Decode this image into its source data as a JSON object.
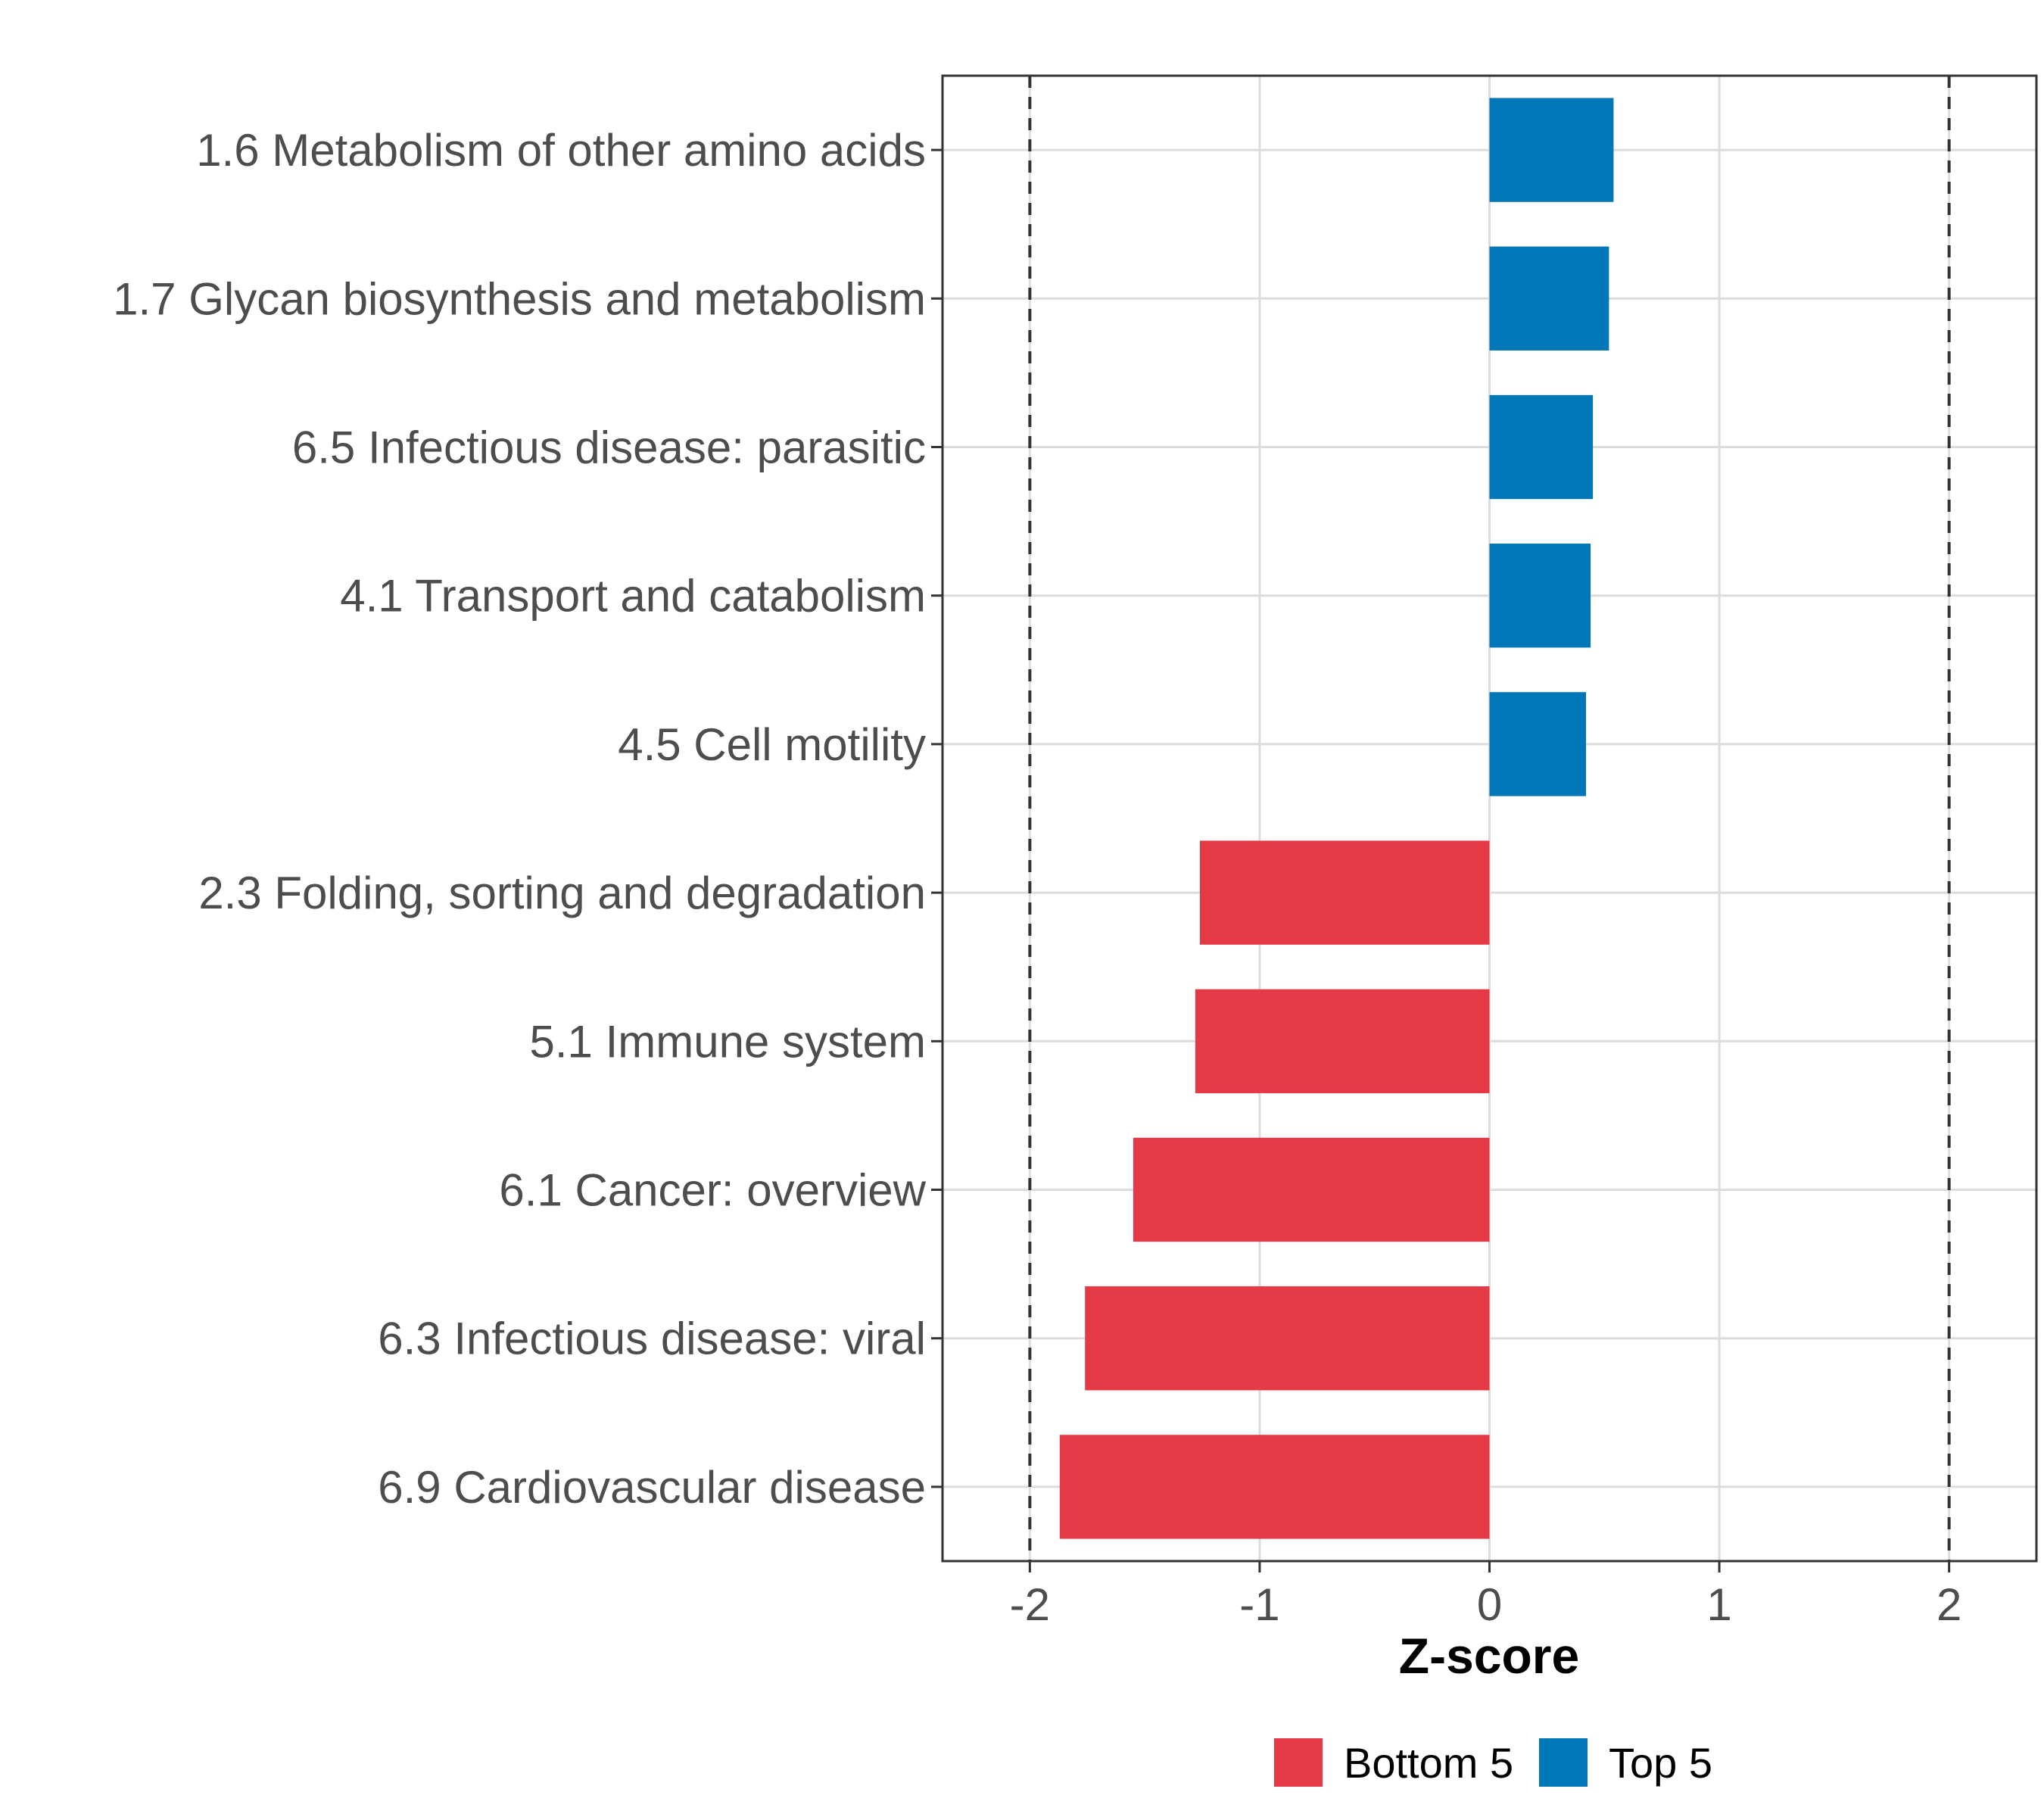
{
  "chart_data": {
    "type": "bar",
    "orientation": "horizontal",
    "title": "",
    "xlabel": "Z-score",
    "ylabel": "",
    "xlim": [
      -2.38,
      2.38
    ],
    "xticks": [
      -2,
      -1,
      0,
      1,
      2
    ],
    "xtick_labels": [
      "-2",
      "-1",
      "0",
      "1",
      "2"
    ],
    "reference_lines": [
      -2,
      2
    ],
    "grid": true,
    "categories": [
      "1.6 Metabolism of other amino acids",
      "1.7 Glycan biosynthesis and metabolism",
      "6.5 Infectious disease: parasitic",
      "4.1 Transport and catabolism",
      "4.5 Cell motility",
      "2.3 Folding, sorting and degradation",
      "5.1 Immune system",
      "6.1 Cancer: overview",
      "6.3 Infectious disease: viral",
      "6.9 Cardiovascular disease"
    ],
    "values": [
      0.54,
      0.52,
      0.45,
      0.44,
      0.42,
      -1.26,
      -1.28,
      -1.55,
      -1.76,
      -1.87
    ],
    "groups": [
      "Top 5",
      "Top 5",
      "Top 5",
      "Top 5",
      "Top 5",
      "Bottom 5",
      "Bottom 5",
      "Bottom 5",
      "Bottom 5",
      "Bottom 5"
    ],
    "legend": {
      "position": "bottom",
      "entries": [
        {
          "label": "Bottom 5",
          "color": "#e63946"
        },
        {
          "label": "Top 5",
          "color": "#0077b6"
        }
      ]
    }
  }
}
